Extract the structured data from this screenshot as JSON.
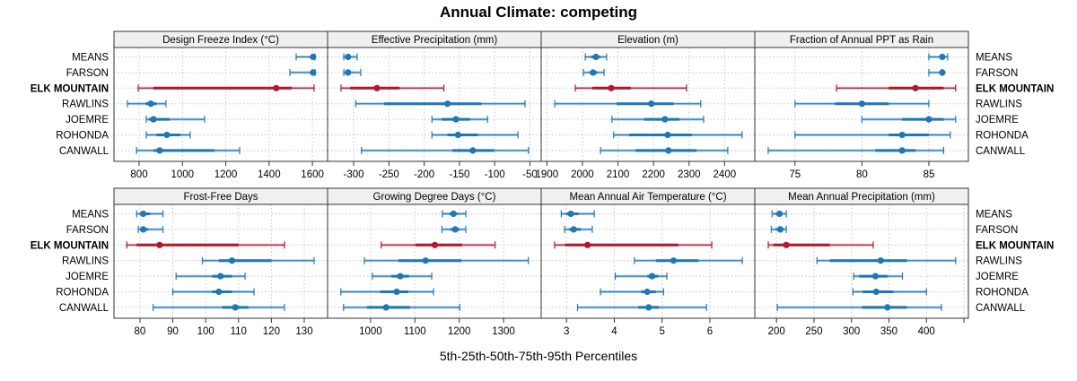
{
  "chart_data": {
    "type": "dotplot-percentile-intervals",
    "title": "Annual Climate: competing",
    "xlabel": "5th-25th-50th-75th-95th Percentiles",
    "categories": [
      "MEANS",
      "FARSON",
      "ELK MOUNTAIN",
      "RAWLINS",
      "JOEMRE",
      "ROHONDA",
      "CANWALL"
    ],
    "highlight_category": "ELK MOUNTAIN",
    "colors": {
      "default": "#1f78b4",
      "highlight": "#b2182b",
      "strip_bg": "#f0f0f0",
      "grid": "#c8c8c8"
    },
    "legend": "none",
    "grid": true,
    "panels": [
      {
        "title": "Design Freeze Index (°C)",
        "xlim": [
          684,
          1670
        ],
        "ticks": [
          800,
          1000,
          1200,
          1400,
          1600
        ],
        "values": {
          "MEANS": [
            1525,
            1598,
            1603,
            1610,
            1612
          ],
          "FARSON": [
            1496,
            1598,
            1603,
            1610,
            1612
          ],
          "ELK MOUNTAIN": [
            796,
            866,
            1433,
            1504,
            1608
          ],
          "RAWLINS": [
            746,
            830,
            854,
            880,
            924
          ],
          "JOEMRE": [
            833,
            845,
            866,
            941,
            1102
          ],
          "ROHONDA": [
            833,
            880,
            928,
            990,
            1036
          ],
          "CANWALL": [
            788,
            866,
            895,
            1148,
            1264
          ]
        }
      },
      {
        "title": "Effective Precipitation (mm)",
        "xlim": [
          -337,
          -34
        ],
        "ticks": [
          -300,
          -250,
          -200,
          -150,
          -100,
          -50
        ],
        "values": {
          "MEANS": [
            -314,
            -311,
            -308,
            -304,
            -295
          ],
          "FARSON": [
            -314,
            -311,
            -308,
            -304,
            -290
          ],
          "ELK MOUNTAIN": [
            -318,
            -305,
            -267,
            -235,
            -172
          ],
          "RAWLINS": [
            -297,
            -257,
            -167,
            -119,
            -57
          ],
          "JOEMRE": [
            -189,
            -175,
            -155,
            -135,
            -110
          ],
          "ROHONDA": [
            -189,
            -167,
            -152,
            -124,
            -67
          ],
          "CANWALL": [
            -289,
            -160,
            -131,
            -101,
            -52
          ]
        }
      },
      {
        "title": "Elevation (m)",
        "xlim": [
          1884,
          2485
        ],
        "ticks": [
          1900,
          2000,
          2100,
          2200,
          2300,
          2400
        ],
        "values": {
          "MEANS": [
            2008,
            2025,
            2038,
            2050,
            2068
          ],
          "FARSON": [
            2003,
            2020,
            2030,
            2042,
            2061
          ],
          "ELK MOUNTAIN": [
            1980,
            2028,
            2081,
            2136,
            2293
          ],
          "RAWLINS": [
            1922,
            2096,
            2194,
            2257,
            2333
          ],
          "JOEMRE": [
            2083,
            2174,
            2232,
            2273,
            2341
          ],
          "ROHONDA": [
            2088,
            2131,
            2240,
            2308,
            2449
          ],
          "CANWALL": [
            2051,
            2149,
            2242,
            2321,
            2409
          ]
        }
      },
      {
        "title": "Fraction of Annual PPT as Rain",
        "xlim": [
          72.0,
          87.95
        ],
        "ticks": [
          75,
          80,
          85
        ],
        "values": {
          "MEANS": [
            85.0,
            85.8,
            86.0,
            86.2,
            86.4
          ],
          "FARSON": [
            85.0,
            85.9,
            86.0,
            86.0,
            86.0
          ],
          "ELK MOUNTAIN": [
            78.1,
            82.0,
            84.0,
            86.1,
            87.0
          ],
          "RAWLINS": [
            75.0,
            78.0,
            80.0,
            82.0,
            85.0
          ],
          "JOEMRE": [
            80.0,
            83.0,
            85.0,
            86.1,
            87.0
          ],
          "ROHONDA": [
            75.0,
            82.0,
            83.0,
            85.0,
            86.6
          ],
          "CANWALL": [
            73.0,
            81.0,
            83.0,
            84.0,
            86.1
          ]
        }
      },
      {
        "title": "Frost-Free Days",
        "xlim": [
          72.1,
          137.1
        ],
        "ticks": [
          80,
          90,
          100,
          110,
          120,
          130
        ],
        "values": {
          "MEANS": [
            79,
            80,
            81,
            83,
            87
          ],
          "FARSON": [
            79.5,
            80.5,
            81,
            82.5,
            87
          ],
          "ELK MOUNTAIN": [
            76,
            79,
            86,
            110,
            124
          ],
          "RAWLINS": [
            99,
            104,
            108,
            120,
            133
          ],
          "JOEMRE": [
            91,
            102,
            104.5,
            108,
            112
          ],
          "ROHONDA": [
            90,
            102,
            104,
            108,
            114.7
          ],
          "CANWALL": [
            84,
            105,
            109,
            113,
            124
          ]
        }
      },
      {
        "title": "Growing Degree Days (°C)",
        "xlim": [
          903,
          1385
        ],
        "ticks": [
          1000,
          1100,
          1200,
          1300
        ],
        "values": {
          "MEANS": [
            1162,
            1178,
            1187,
            1196,
            1215
          ],
          "FARSON": [
            1161,
            1180,
            1191,
            1200,
            1215
          ],
          "ELK MOUNTAIN": [
            1024,
            1101,
            1145,
            1207,
            1281
          ],
          "RAWLINS": [
            986,
            1063,
            1124,
            1205,
            1356
          ],
          "JOEMRE": [
            1004,
            1047,
            1067,
            1087,
            1138
          ],
          "ROHONDA": [
            933,
            1022,
            1059,
            1085,
            1142
          ],
          "CANWALL": [
            939,
            992,
            1035,
            1089,
            1201
          ]
        }
      },
      {
        "title": "Mean Annual Air Temperature (°C)",
        "xlim": [
          2.47,
          6.94
        ],
        "ticks": [
          3,
          4,
          5,
          6
        ],
        "values": {
          "MEANS": [
            2.89,
            3.0,
            3.09,
            3.25,
            3.58
          ],
          "FARSON": [
            2.96,
            3.05,
            3.15,
            3.3,
            3.54
          ],
          "ELK MOUNTAIN": [
            2.75,
            2.97,
            3.44,
            5.34,
            6.04
          ],
          "RAWLINS": [
            4.42,
            4.87,
            5.24,
            5.76,
            6.68
          ],
          "JOEMRE": [
            4.02,
            4.69,
            4.79,
            4.92,
            5.1
          ],
          "ROHONDA": [
            3.71,
            4.56,
            4.69,
            4.87,
            5.03
          ],
          "CANWALL": [
            3.23,
            4.5,
            4.72,
            4.93,
            5.93
          ]
        }
      },
      {
        "title": "Mean Annual Precipitation (mm)",
        "xlim": [
          171,
          456
        ],
        "ticks": [
          200,
          250,
          300,
          350,
          400,
          450
        ],
        "tick_labels": [
          "200",
          "250",
          "300",
          "350",
          "400",
          ""
        ],
        "values": {
          "MEANS": [
            194,
            199,
            204,
            208,
            213
          ],
          "FARSON": [
            193,
            199,
            205,
            209,
            213
          ],
          "ELK MOUNTAIN": [
            189,
            196,
            213,
            271,
            329
          ],
          "RAWLINS": [
            254,
            271,
            339,
            374,
            439
          ],
          "JOEMRE": [
            303,
            310,
            332,
            348,
            368
          ],
          "ROHONDA": [
            302,
            315,
            333,
            356,
            400
          ],
          "CANWALL": [
            201,
            314,
            348,
            374,
            420
          ]
        }
      }
    ]
  }
}
